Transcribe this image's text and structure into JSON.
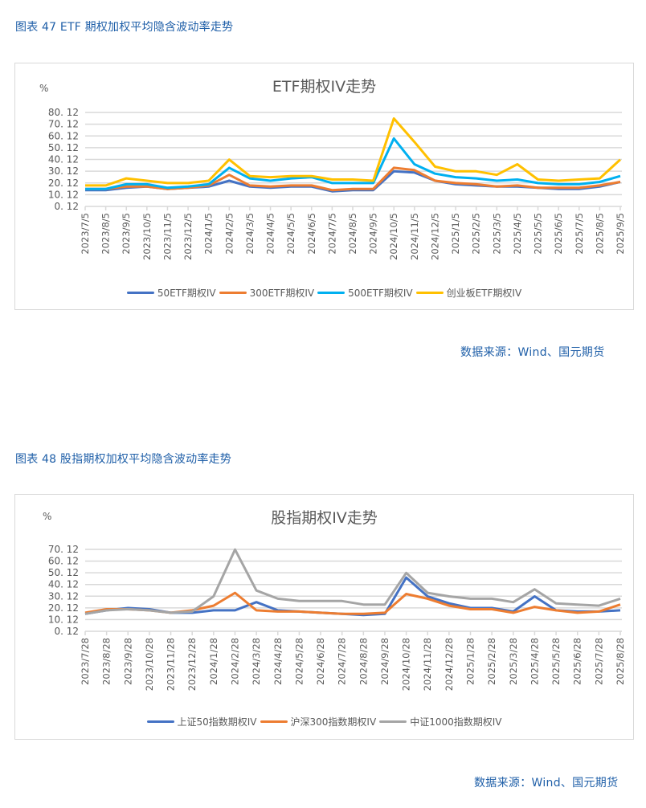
{
  "figures": [
    {
      "caption": "图表 47  ETF 期权加权平均隐含波动率走势",
      "unit": "%",
      "source": "数据来源：Wind、国元期货"
    },
    {
      "caption": "图表 48  股指期权加权平均隐含波动率走势",
      "unit": "%",
      "source": "数据来源：Wind、国元期货"
    }
  ],
  "chart_data": [
    {
      "type": "line",
      "title": "ETF期权IV走势",
      "xlabel": "",
      "ylabel": "%",
      "ylim": [
        0.12,
        80.12
      ],
      "yticks": [
        "0.12",
        "10.12",
        "20.12",
        "30.12",
        "40.12",
        "50.12",
        "60.12",
        "70.12",
        "80.12"
      ],
      "grid": true,
      "legend_position": "bottom",
      "categories": [
        "2023/7/5",
        "2023/8/5",
        "2023/9/5",
        "2023/10/5",
        "2023/11/5",
        "2023/12/5",
        "2024/1/5",
        "2024/2/5",
        "2024/3/5",
        "2024/4/5",
        "2024/5/5",
        "2024/6/5",
        "2024/7/5",
        "2024/8/5",
        "2024/9/5",
        "2024/10/5",
        "2024/11/5",
        "2024/12/5",
        "2025/1/5",
        "2025/2/5",
        "2025/3/5",
        "2025/4/5",
        "2025/5/5",
        "2025/6/5",
        "2025/7/5",
        "2025/8/5",
        "2025/9/5"
      ],
      "series": [
        {
          "name": "50ETF期权IV",
          "color": "#4472c4",
          "values": [
            14,
            14,
            16,
            17,
            15,
            16,
            17,
            22,
            17,
            16,
            17,
            17,
            13,
            14,
            14,
            30,
            29,
            22,
            19,
            18,
            17,
            17,
            16,
            15,
            15,
            17,
            21
          ]
        },
        {
          "name": "300ETF期权IV",
          "color": "#ed7d31",
          "values": [
            15,
            15,
            17,
            17,
            15,
            16,
            18,
            27,
            18,
            17,
            18,
            18,
            14,
            15,
            15,
            33,
            31,
            22,
            20,
            19,
            17,
            18,
            16,
            16,
            16,
            18,
            21
          ]
        },
        {
          "name": "500ETF期权IV",
          "color": "#00b0f0",
          "values": [
            15,
            15,
            19,
            19,
            16,
            17,
            19,
            33,
            24,
            22,
            24,
            25,
            20,
            20,
            20,
            58,
            36,
            28,
            25,
            24,
            22,
            23,
            20,
            19,
            19,
            21,
            26
          ]
        },
        {
          "name": "创业板ETF期权IV",
          "color": "#ffc000",
          "values": [
            18,
            18,
            24,
            22,
            20,
            20,
            22,
            40,
            26,
            25,
            26,
            26,
            23,
            23,
            22,
            75,
            55,
            34,
            30,
            30,
            27,
            36,
            23,
            22,
            23,
            24,
            40
          ]
        }
      ]
    },
    {
      "type": "line",
      "title": "股指期权IV走势",
      "xlabel": "",
      "ylabel": "%",
      "ylim": [
        0.12,
        70.12
      ],
      "yticks": [
        "0.12",
        "10.12",
        "20.12",
        "30.12",
        "40.12",
        "50.12",
        "60.12",
        "70.12"
      ],
      "grid": true,
      "legend_position": "bottom",
      "categories": [
        "2023/7/28",
        "2023/8/28",
        "2023/9/28",
        "2023/10/28",
        "2023/11/28",
        "2023/12/28",
        "2024/1/28",
        "2024/2/28",
        "2024/3/28",
        "2024/4/28",
        "2024/5/28",
        "2024/6/28",
        "2024/7/28",
        "2024/8/28",
        "2024/9/28",
        "2024/10/28",
        "2024/11/28",
        "2024/12/28",
        "2025/1/28",
        "2025/2/28",
        "2025/3/28",
        "2025/4/28",
        "2025/5/28",
        "2025/6/28",
        "2025/7/28",
        "2025/8/28"
      ],
      "series": [
        {
          "name": "上证50指数期权IV",
          "color": "#4472c4",
          "values": [
            15,
            18,
            20,
            19,
            16,
            16,
            18,
            18,
            25,
            18,
            17,
            16,
            15,
            14,
            15,
            46,
            30,
            24,
            20,
            20,
            17,
            30,
            18,
            17,
            17,
            18
          ]
        },
        {
          "name": "沪深300指数期权IV",
          "color": "#ed7d31",
          "values": [
            16,
            19,
            19,
            18,
            16,
            18,
            22,
            33,
            18,
            17,
            17,
            16,
            15,
            15,
            16,
            32,
            28,
            22,
            19,
            19,
            16,
            21,
            18,
            16,
            17,
            23
          ]
        },
        {
          "name": "中证1000指数期权IV",
          "color": "#a5a5a5",
          "values": [
            15,
            18,
            19,
            18,
            16,
            17,
            30,
            70,
            35,
            28,
            26,
            26,
            26,
            23,
            23,
            50,
            33,
            30,
            28,
            28,
            25,
            36,
            24,
            23,
            22,
            28
          ]
        }
      ]
    }
  ]
}
